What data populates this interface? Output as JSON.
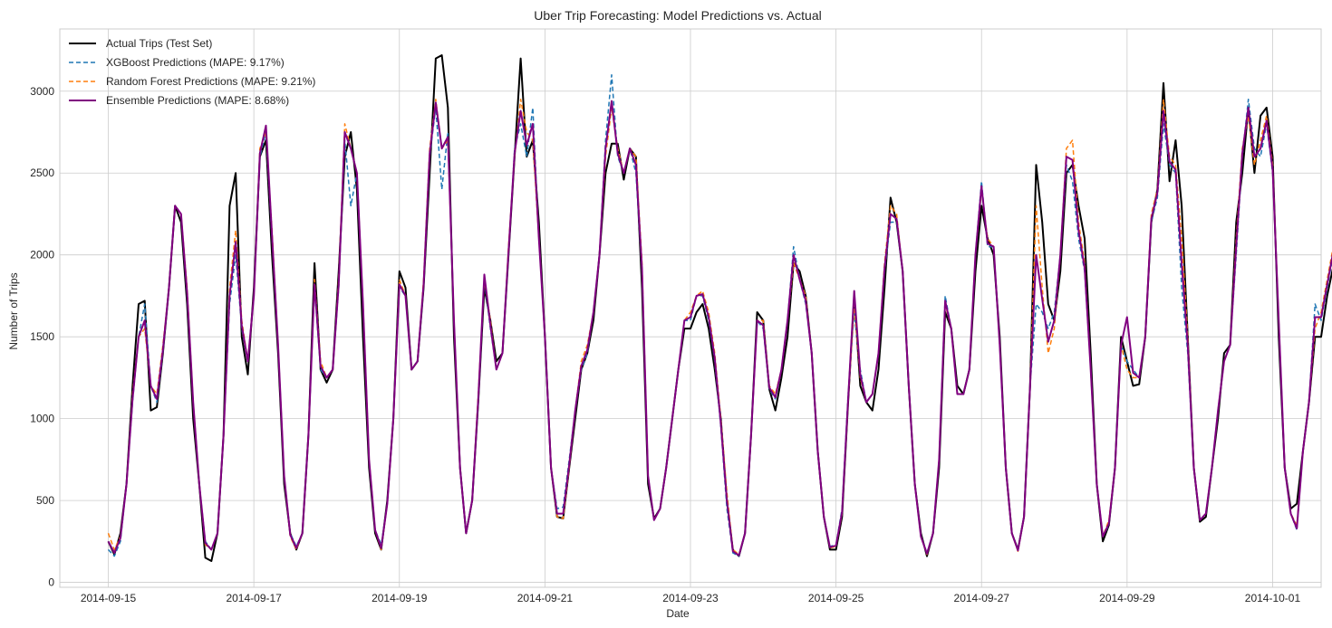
{
  "chart_data": {
    "type": "line",
    "title": "Uber Trip Forecasting: Model Predictions vs. Actual",
    "xlabel": "Date",
    "ylabel": "Number of Trips",
    "x_start": "2014-09-15",
    "x_end": "2014-09-30T23:00",
    "xlim": [
      "2014-09-14T08:00",
      "2014-10-01T16:00"
    ],
    "ylim": [
      -30,
      3380
    ],
    "x_ticks": [
      "2014-09-15",
      "2014-09-17",
      "2014-09-19",
      "2014-09-21",
      "2014-09-23",
      "2014-09-25",
      "2014-09-27",
      "2014-09-29",
      "2014-10-01"
    ],
    "y_ticks": [
      0,
      500,
      1000,
      1500,
      2000,
      2500,
      3000
    ],
    "grid": true,
    "legend_position": "top-left",
    "series": [
      {
        "name": "Actual Trips (Test Set)",
        "color": "#000000",
        "style": "solid",
        "values": [
          [
            250,
            170,
            300,
            600,
            1200,
            1700,
            1720,
            1050,
            1070,
            1400,
            1800,
            2300,
            2200,
            1700,
            1000,
            600,
            150,
            130,
            300,
            900,
            2300,
            2500,
            1500,
            1270,
            1800,
            2600,
            2700,
            2000,
            1400,
            600,
            300,
            200,
            300,
            900,
            1950,
            1300,
            1220,
            1300,
            1900,
            2600,
            2750,
            2400,
            1500,
            700,
            300,
            200,
            500,
            1000,
            1900,
            1800,
            1300,
            1350,
            1800,
            2500,
            3200,
            3220,
            2900,
            1500,
            700,
            300,
            500,
            1100,
            1800,
            1600,
            1350,
            1400,
            2000,
            2600,
            3200,
            2600,
            2700,
            2200,
            1500,
            700,
            400,
            390,
            700,
            1000,
            1300,
            1400,
            1600,
            2000,
            2500,
            2680,
            2680,
            2460,
            2650,
            2600,
            1800,
            600,
            390,
            450,
            700,
            1000,
            1300,
            1550,
            1550,
            1650,
            1700,
            1550,
            1300,
            1000,
            500,
            200,
            160,
            300,
            900,
            1650,
            1600,
            1180,
            1050,
            1250,
            1500,
            1950,
            1900,
            1750,
            1400,
            800,
            400,
            200,
            200,
            400,
            1100,
            1750,
            1200,
            1100,
            1050,
            1300,
            1800,
            2350,
            2200,
            1900,
            1200,
            600,
            300,
            160,
            300,
            700,
            1650,
            1550,
            1200,
            1150,
            1300,
            1900,
            2300,
            2100,
            2000,
            1500,
            700,
            300,
            200,
            400,
            1200,
            2550,
            2200,
            1700,
            1600,
            1900,
            2500,
            2550,
            2300,
            2100,
            1400,
            600,
            250,
            350,
            700,
            1500,
            1350,
            1200,
            1210,
            1500,
            2200,
            2400,
            3050,
            2450,
            2700,
            2300,
            1500,
            700,
            370,
            400,
            700,
            1000,
            1400,
            1450,
            2200,
            2500,
            2900,
            2500,
            2850,
            2900,
            2600,
            1500,
            700,
            450,
            480,
            800,
            1100,
            1500,
            1500,
            1750,
            1930,
            1800,
            1750,
            1500,
            1300,
            900,
            300,
            160,
            250,
            700,
            1200,
            1750,
            1600,
            1150,
            1100,
            1300,
            1700,
            1950,
            2050,
            1800,
            1200,
            600,
            200,
            130,
            300,
            800,
            2050,
            1900,
            1250,
            1200,
            1400,
            1900,
            2300,
            2700,
            2600,
            2400,
            2100,
            1350
          ]
        ]
      },
      {
        "name": "XGBoost Predictions (MAPE: 9.17%)",
        "color": "#1f77b4",
        "style": "dashed",
        "values": [
          [
            200,
            160,
            250,
            600,
            1100,
            1500,
            1700,
            1200,
            1100,
            1400,
            1800,
            2300,
            2250,
            1750,
            1100,
            600,
            250,
            200,
            300,
            900,
            1700,
            2000,
            1550,
            1350,
            1750,
            2600,
            2750,
            2100,
            1450,
            650,
            300,
            220,
            300,
            900,
            1800,
            1300,
            1250,
            1300,
            1800,
            2700,
            2300,
            2500,
            1700,
            750,
            320,
            230,
            480,
            1000,
            1800,
            1750,
            1300,
            1350,
            1800,
            2600,
            2900,
            2400,
            2750,
            1600,
            700,
            300,
            500,
            1100,
            1850,
            1550,
            1300,
            1400,
            2000,
            2650,
            2800,
            2600,
            2900,
            2100,
            1500,
            700,
            450,
            460,
            750,
            1050,
            1300,
            1400,
            1650,
            2000,
            2700,
            3100,
            2600,
            2500,
            2650,
            2500,
            1900,
            650,
            380,
            450,
            700,
            1000,
            1300,
            1600,
            1600,
            1750,
            1750,
            1600,
            1350,
            950,
            450,
            180,
            160,
            300,
            900,
            1600,
            1550,
            1180,
            1120,
            1300,
            1600,
            2050,
            1850,
            1700,
            1400,
            800,
            400,
            220,
            230,
            450,
            1150,
            1650,
            1300,
            1100,
            1150,
            1400,
            1900,
            2200,
            2200,
            1900,
            1200,
            600,
            280,
            180,
            300,
            750,
            1750,
            1550,
            1150,
            1150,
            1300,
            2000,
            2450,
            2050,
            2050,
            1450,
            700,
            300,
            200,
            400,
            1200,
            1700,
            1650,
            1550,
            1650,
            2000,
            2550,
            2450,
            2100,
            1900,
            1300,
            600,
            280,
            350,
            700,
            1450,
            1350,
            1300,
            1250,
            1500,
            2200,
            2350,
            2800,
            2550,
            2500,
            1800,
            1400,
            700,
            380,
            420,
            700,
            1050,
            1350,
            1450,
            2000,
            2600,
            2950,
            2650,
            2600,
            2800,
            2500,
            1600,
            700,
            420,
            320,
            800,
            1100,
            1700,
            1600,
            1800,
            2000,
            1850,
            1750,
            1500,
            1300,
            900,
            350,
            180,
            270,
            700,
            1300,
            1700,
            1150,
            1100,
            1150,
            1300,
            1700,
            1950,
            2000,
            1700,
            1200,
            600,
            220,
            170,
            300,
            800,
            1800,
            1750,
            1200,
            1200,
            1400,
            2000,
            2400,
            2050,
            2350,
            2300,
            1950,
            1500
          ]
        ]
      },
      {
        "name": "Random Forest Predictions (MAPE: 9.21%)",
        "color": "#ff7f0e",
        "style": "dashed",
        "values": [
          [
            300,
            200,
            280,
            600,
            1150,
            1500,
            1550,
            1200,
            1150,
            1450,
            1800,
            2300,
            2250,
            1800,
            1100,
            600,
            230,
            200,
            300,
            900,
            1800,
            2150,
            1600,
            1350,
            1750,
            2650,
            2750,
            2150,
            1450,
            650,
            280,
            200,
            300,
            900,
            1850,
            1350,
            1250,
            1300,
            1850,
            2800,
            2650,
            2500,
            1700,
            750,
            320,
            200,
            480,
            1000,
            1850,
            1750,
            1300,
            1350,
            1850,
            2650,
            2950,
            2650,
            2700,
            1600,
            700,
            300,
            500,
            1150,
            1850,
            1600,
            1300,
            1400,
            2050,
            2600,
            2950,
            2750,
            2700,
            2100,
            1500,
            700,
            400,
            390,
            700,
            1050,
            1350,
            1450,
            1650,
            2000,
            2600,
            2900,
            2650,
            2500,
            2650,
            2600,
            1950,
            650,
            380,
            450,
            700,
            1000,
            1300,
            1600,
            1650,
            1750,
            1780,
            1650,
            1400,
            1000,
            550,
            200,
            170,
            300,
            900,
            1600,
            1600,
            1200,
            1150,
            1300,
            1600,
            1950,
            1850,
            1750,
            1400,
            800,
            400,
            210,
            220,
            420,
            1100,
            1700,
            1250,
            1100,
            1150,
            1400,
            1950,
            2300,
            2250,
            1900,
            1200,
            600,
            280,
            170,
            300,
            750,
            1700,
            1550,
            1150,
            1150,
            1300,
            2000,
            2400,
            2100,
            2050,
            1450,
            700,
            300,
            190,
            400,
            1200,
            2300,
            1800,
            1400,
            1550,
            2000,
            2650,
            2700,
            2200,
            1950,
            1300,
            600,
            280,
            380,
            700,
            1450,
            1300,
            1250,
            1250,
            1500,
            2250,
            2400,
            2950,
            2600,
            2550,
            2100,
            1500,
            700,
            380,
            420,
            700,
            1050,
            1350,
            1450,
            2100,
            2650,
            2850,
            2550,
            2700,
            2850,
            2550,
            1600,
            700,
            420,
            350,
            800,
            1100,
            1550,
            1650,
            1850,
            2050,
            1900,
            1800,
            1500,
            1300,
            900,
            320,
            180,
            270,
            700,
            1300,
            1550,
            1350,
            1150,
            1200,
            1350,
            1750,
            2000,
            2000,
            1800,
            1250,
            600,
            220,
            160,
            300,
            800,
            1850,
            1750,
            1200,
            1200,
            1450,
            2000,
            2500,
            2500,
            2400,
            2350,
            2050,
            1500
          ]
        ]
      },
      {
        "name": "Ensemble Predictions (MAPE: 8.68%)",
        "color": "#800080",
        "style": "solid",
        "values": [
          [
            250,
            180,
            270,
            600,
            1120,
            1500,
            1600,
            1200,
            1120,
            1420,
            1800,
            2300,
            2250,
            1770,
            1100,
            600,
            240,
            200,
            300,
            900,
            1750,
            2080,
            1570,
            1350,
            1750,
            2620,
            2790,
            2120,
            1450,
            650,
            290,
            210,
            300,
            900,
            1820,
            1320,
            1250,
            1300,
            1820,
            2750,
            2650,
            2500,
            1700,
            750,
            320,
            210,
            480,
            1000,
            1820,
            1750,
            1300,
            1350,
            1820,
            2620,
            2930,
            2650,
            2720,
            1600,
            700,
            300,
            500,
            1120,
            1880,
            1570,
            1300,
            1400,
            2020,
            2620,
            2880,
            2670,
            2800,
            2100,
            1500,
            700,
            420,
            420,
            720,
            1050,
            1320,
            1420,
            1650,
            2000,
            2650,
            2940,
            2620,
            2500,
            2650,
            2550,
            1920,
            650,
            380,
            450,
            700,
            1000,
            1300,
            1600,
            1620,
            1750,
            1760,
            1620,
            1370,
            970,
            500,
            190,
            165,
            300,
            900,
            1600,
            1570,
            1190,
            1130,
            1300,
            1600,
            2000,
            1850,
            1720,
            1400,
            800,
            400,
            215,
            225,
            430,
            1120,
            1780,
            1270,
            1100,
            1150,
            1400,
            1920,
            2250,
            2220,
            1900,
            1200,
            600,
            280,
            175,
            300,
            750,
            1720,
            1550,
            1150,
            1150,
            1300,
            2000,
            2420,
            2070,
            2050,
            1450,
            700,
            300,
            195,
            400,
            1200,
            2000,
            1730,
            1470,
            1600,
            2000,
            2600,
            2580,
            2150,
            1920,
            1300,
            600,
            280,
            360,
            700,
            1450,
            1620,
            1280,
            1250,
            1500,
            2220,
            2380,
            2880,
            2570,
            2520,
            1950,
            1450,
            700,
            380,
            420,
            700,
            1050,
            1350,
            1450,
            2050,
            2620,
            2900,
            2600,
            2650,
            2820,
            2520,
            1600,
            700,
            420,
            330,
            800,
            1100,
            1620,
            1620,
            1820,
            2020,
            1870,
            1770,
            1500,
            1300,
            900,
            330,
            180,
            270,
            700,
            1300,
            1620,
            1250,
            1120,
            1170,
            1320,
            1720,
            1970,
            2050,
            1750,
            1220,
            600,
            220,
            165,
            300,
            800,
            1820,
            1750,
            1200,
            1200,
            1420,
            2000,
            2580,
            2280,
            2370,
            2320,
            2000,
            1500
          ]
        ]
      }
    ]
  }
}
